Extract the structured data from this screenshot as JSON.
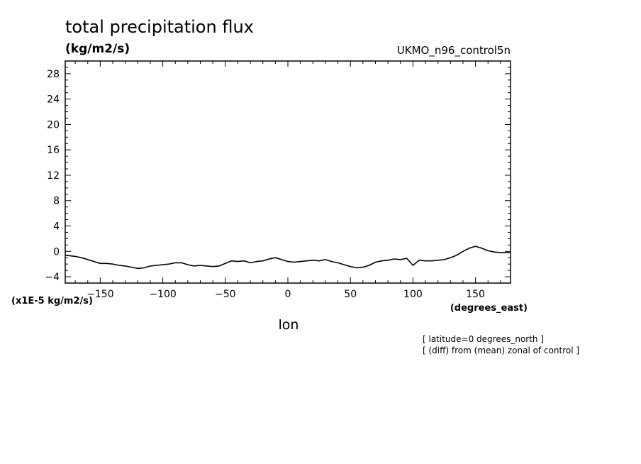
{
  "chart_data": {
    "type": "line",
    "title": "total precipitation flux",
    "units": "(kg/m2/s)",
    "source": "UKMO_n96_control5n",
    "scale_label": "(x1E-5 kg/m2/s)",
    "xlabel": "lon",
    "x_units": "(degrees_east)",
    "notes": [
      "[ latitude=0 degrees_north ]",
      "[ (diff) from (mean) zonal of control ]"
    ],
    "xlim": [
      -178,
      178
    ],
    "ylim": [
      -5,
      30
    ],
    "x_ticks": [
      -150,
      -100,
      -50,
      0,
      50,
      100,
      150
    ],
    "x_tick_labels": [
      "−150",
      "−100",
      "−50",
      "0",
      "50",
      "100",
      "150"
    ],
    "y_ticks": [
      -4,
      0,
      4,
      8,
      12,
      16,
      20,
      24,
      28
    ],
    "y_tick_labels": [
      "−4",
      "0",
      "4",
      "8",
      "12",
      "16",
      "20",
      "24",
      "28"
    ],
    "grid": false,
    "series": [
      {
        "x": [
          -178,
          -170,
          -165,
          -160,
          -155,
          -150,
          -145,
          -140,
          -135,
          -130,
          -125,
          -120,
          -115,
          -110,
          -105,
          -100,
          -95,
          -90,
          -85,
          -80,
          -75,
          -70,
          -65,
          -60,
          -55,
          -50,
          -45,
          -40,
          -35,
          -30,
          -25,
          -20,
          -15,
          -10,
          -5,
          0,
          5,
          10,
          15,
          20,
          25,
          30,
          35,
          40,
          45,
          50,
          55,
          60,
          65,
          70,
          75,
          80,
          85,
          90,
          95,
          100,
          105,
          110,
          115,
          120,
          125,
          130,
          135,
          140,
          145,
          150,
          155,
          160,
          165,
          170,
          178
        ],
        "y": [
          -0.6,
          -0.8,
          -1.0,
          -1.3,
          -1.6,
          -1.9,
          -1.9,
          -2.0,
          -2.2,
          -2.3,
          -2.5,
          -2.7,
          -2.6,
          -2.3,
          -2.2,
          -2.1,
          -2.0,
          -1.8,
          -1.8,
          -2.1,
          -2.3,
          -2.2,
          -2.3,
          -2.4,
          -2.3,
          -1.9,
          -1.5,
          -1.6,
          -1.5,
          -1.8,
          -1.6,
          -1.5,
          -1.2,
          -1.0,
          -1.3,
          -1.6,
          -1.7,
          -1.6,
          -1.5,
          -1.4,
          -1.5,
          -1.3,
          -1.6,
          -1.8,
          -2.1,
          -2.4,
          -2.6,
          -2.5,
          -2.2,
          -1.7,
          -1.5,
          -1.4,
          -1.2,
          -1.3,
          -1.1,
          -2.2,
          -1.4,
          -1.5,
          -1.5,
          -1.4,
          -1.3,
          -1.0,
          -0.6,
          0.0,
          0.5,
          0.8,
          0.5,
          0.1,
          -0.1,
          -0.2,
          -0.2
        ]
      }
    ]
  }
}
